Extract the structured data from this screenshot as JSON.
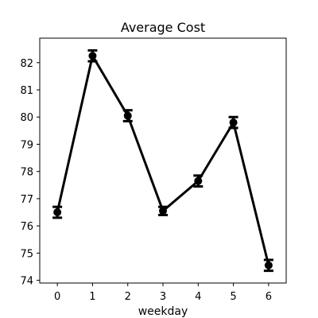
{
  "chart_data": {
    "type": "line",
    "title": "Average Cost",
    "xlabel": "weekday",
    "ylabel": "",
    "x": [
      0,
      1,
      2,
      3,
      4,
      5,
      6
    ],
    "xticks": [
      "0",
      "1",
      "2",
      "3",
      "4",
      "5",
      "6"
    ],
    "yticks": [
      "74",
      "75",
      "76",
      "77",
      "78",
      "79",
      "80",
      "81",
      "82"
    ],
    "xlim": [
      -0.5,
      6.5
    ],
    "ylim": [
      73.9,
      82.9
    ],
    "grid": false,
    "series": [
      {
        "values": [
          76.5,
          82.25,
          80.05,
          76.55,
          77.65,
          79.8,
          74.55
        ],
        "error_low": [
          76.3,
          82.05,
          79.85,
          76.4,
          77.45,
          79.6,
          74.35
        ],
        "error_high": [
          76.7,
          82.45,
          80.25,
          76.7,
          77.85,
          80.0,
          74.75
        ],
        "color": "#000000",
        "marker": "circle"
      }
    ]
  }
}
